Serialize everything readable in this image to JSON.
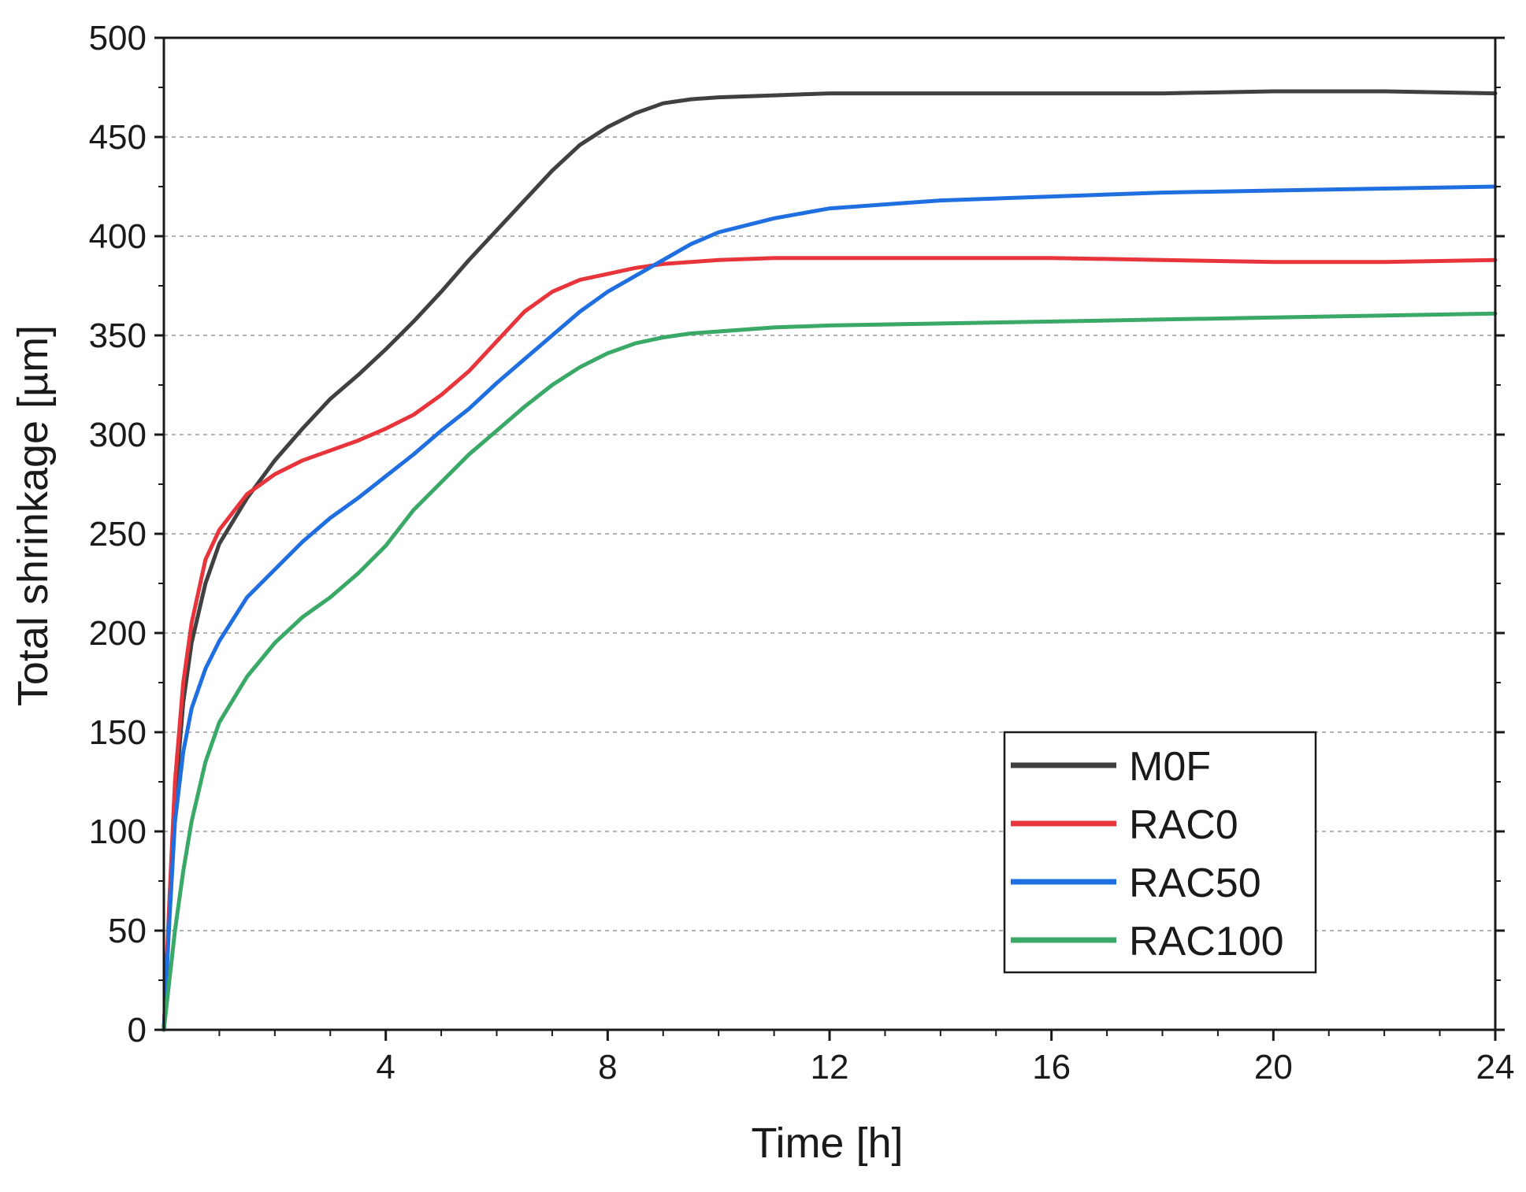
{
  "chart_data": {
    "type": "line",
    "xlabel": "Time [h]",
    "ylabel": "Total shrinkage [µm]",
    "xlim": [
      0,
      24
    ],
    "ylim": [
      0,
      500
    ],
    "xticks": [
      4,
      8,
      12,
      16,
      20,
      24
    ],
    "yticks": [
      0,
      50,
      100,
      150,
      200,
      250,
      300,
      350,
      400,
      450,
      500
    ],
    "grid": "horizontal dashed",
    "legend_position": "lower-right",
    "series": [
      {
        "name": "M0F",
        "color": "#404040",
        "x": [
          0,
          0.1,
          0.2,
          0.35,
          0.5,
          0.75,
          1,
          1.5,
          2,
          2.5,
          3,
          3.5,
          4,
          4.5,
          5,
          5.5,
          6,
          6.5,
          7,
          7.5,
          8,
          8.5,
          9,
          9.5,
          10,
          11,
          12,
          14,
          16,
          18,
          20,
          22,
          24
        ],
        "y": [
          0,
          60,
          115,
          165,
          195,
          225,
          245,
          268,
          287,
          303,
          318,
          330,
          343,
          357,
          372,
          388,
          403,
          418,
          433,
          446,
          455,
          462,
          467,
          469,
          470,
          471,
          472,
          472,
          472,
          472,
          473,
          473,
          472
        ]
      },
      {
        "name": "RAC0",
        "color": "#e8343b",
        "x": [
          0,
          0.1,
          0.2,
          0.35,
          0.5,
          0.75,
          1,
          1.5,
          2,
          2.5,
          3,
          3.5,
          4,
          4.5,
          5,
          5.5,
          6,
          6.5,
          7,
          7.5,
          8,
          8.5,
          9,
          9.5,
          10,
          11,
          12,
          14,
          16,
          18,
          20,
          22,
          24
        ],
        "y": [
          0,
          65,
          125,
          175,
          205,
          237,
          252,
          270,
          280,
          287,
          292,
          297,
          303,
          310,
          320,
          332,
          347,
          362,
          372,
          378,
          381,
          384,
          386,
          387,
          388,
          389,
          389,
          389,
          389,
          388,
          387,
          387,
          388
        ]
      },
      {
        "name": "RAC50",
        "color": "#1f6fe0",
        "x": [
          0,
          0.1,
          0.2,
          0.35,
          0.5,
          0.75,
          1,
          1.5,
          2,
          2.5,
          3,
          3.5,
          4,
          4.5,
          5,
          5.5,
          6,
          6.5,
          7,
          7.5,
          8,
          8.5,
          9,
          9.5,
          10,
          11,
          12,
          14,
          16,
          18,
          20,
          22,
          24
        ],
        "y": [
          0,
          55,
          105,
          140,
          162,
          182,
          196,
          218,
          232,
          246,
          258,
          268,
          279,
          290,
          302,
          313,
          326,
          338,
          350,
          362,
          372,
          380,
          388,
          396,
          402,
          409,
          414,
          418,
          420,
          422,
          423,
          424,
          425
        ]
      },
      {
        "name": "RAC100",
        "color": "#3aa867",
        "x": [
          0,
          0.1,
          0.2,
          0.35,
          0.5,
          0.75,
          1,
          1.5,
          2,
          2.5,
          3,
          3.5,
          4,
          4.5,
          5,
          5.5,
          6,
          6.5,
          7,
          7.5,
          8,
          8.5,
          9,
          9.5,
          10,
          11,
          12,
          14,
          16,
          18,
          20,
          22,
          24
        ],
        "y": [
          0,
          25,
          50,
          80,
          105,
          135,
          155,
          178,
          195,
          208,
          218,
          230,
          244,
          262,
          276,
          290,
          302,
          314,
          325,
          334,
          341,
          346,
          349,
          351,
          352,
          354,
          355,
          356,
          357,
          358,
          359,
          360,
          361
        ]
      }
    ]
  }
}
